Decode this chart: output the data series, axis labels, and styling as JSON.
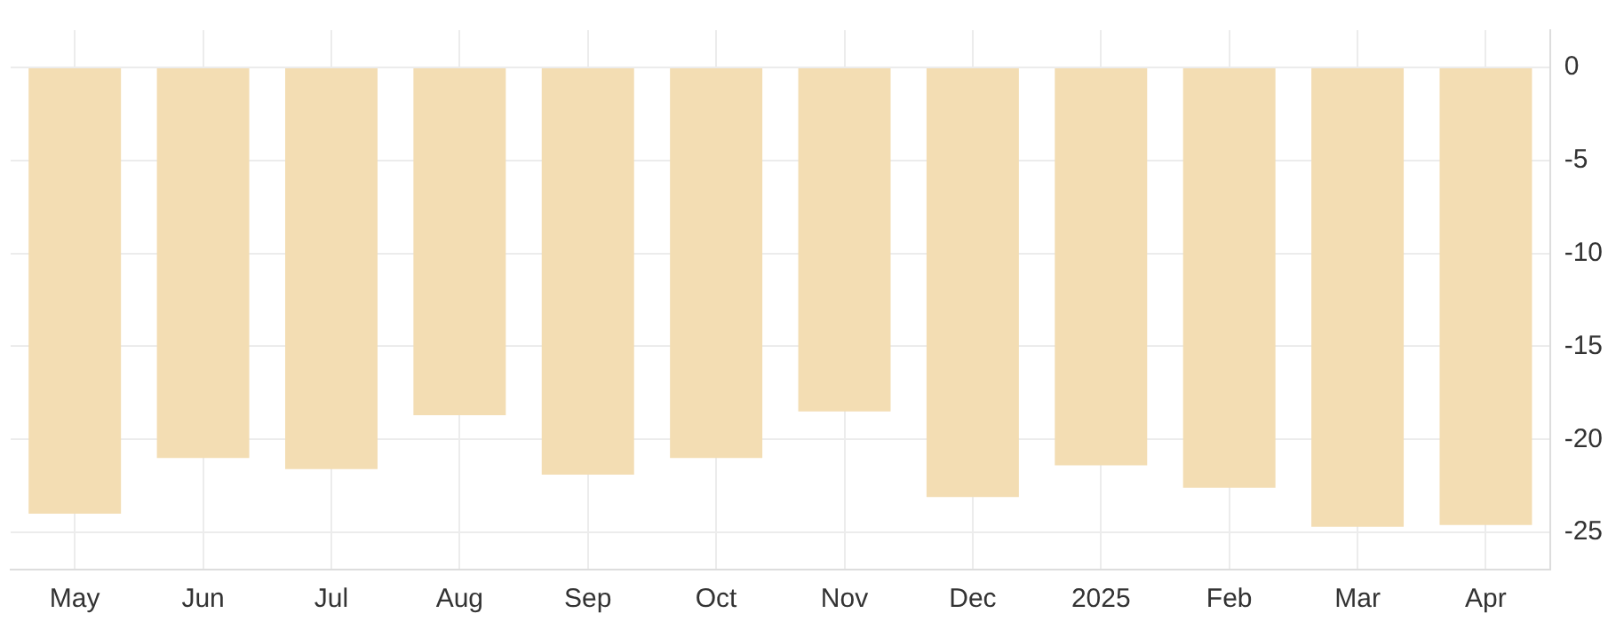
{
  "chart_data": {
    "type": "bar",
    "categories": [
      "May",
      "Jun",
      "Jul",
      "Aug",
      "Sep",
      "Oct",
      "Nov",
      "Dec",
      "2025",
      "Feb",
      "Mar",
      "Apr"
    ],
    "values": [
      -24.0,
      -21.0,
      -21.6,
      -18.7,
      -21.9,
      -21.0,
      -18.5,
      -23.1,
      -21.4,
      -22.6,
      -24.7,
      -24.6
    ],
    "color": "#f3ddb3",
    "ylim": [
      -27,
      2
    ],
    "yticks": [
      0,
      -5,
      -10,
      -15,
      -20,
      -25
    ],
    "grid": true
  }
}
